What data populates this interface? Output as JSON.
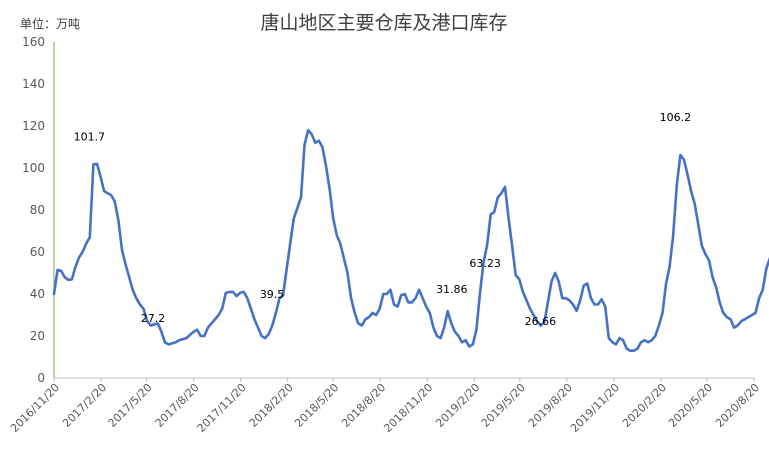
{
  "chart_data": {
    "type": "line",
    "title": "唐山地区主要仓库及港口库存",
    "unit_label": "单位：万吨",
    "ylabel": "",
    "xlabel": "",
    "ylim": [
      0,
      160
    ],
    "y_ticks": [
      "0",
      "20",
      "40",
      "60",
      "80",
      "100",
      "120",
      "140",
      "160"
    ],
    "x_tick_labels": [
      "2016/11/20",
      "2017/2/20",
      "2017/5/20",
      "2017/8/20",
      "2017/11/20",
      "2018/2/20",
      "2018/5/20",
      "2018/8/20",
      "2018/11/20",
      "2019/2/20",
      "2019/5/20",
      "2019/8/20",
      "2019/11/20",
      "2020/2/20",
      "2020/5/20",
      "2020/8/20"
    ],
    "grid": false,
    "legend": "none",
    "line_color": "#4472C4",
    "series": [
      {
        "x_start": "2016/11/20",
        "interval_days": 7,
        "values": [
          40,
          51.5,
          51,
          48,
          46.7,
          47,
          53,
          57.5,
          60,
          64,
          67,
          101.7,
          102,
          96,
          89,
          88,
          87,
          84,
          75,
          61,
          54,
          48,
          42,
          38,
          35,
          33,
          27.2,
          25,
          25.5,
          26,
          22,
          17,
          16,
          16.5,
          17,
          18,
          18.5,
          19,
          20.5,
          22,
          23,
          20,
          20,
          24,
          26,
          28,
          30,
          33,
          40.5,
          41,
          41,
          39,
          40.5,
          41,
          38,
          33,
          28,
          24,
          20,
          19,
          21,
          25,
          31,
          38,
          39.5,
          52,
          64,
          76,
          81,
          86,
          111,
          118,
          116,
          112,
          113,
          110,
          101,
          90,
          76,
          68,
          64,
          57,
          50,
          38,
          31,
          26,
          25,
          28,
          29,
          31,
          30,
          33,
          40,
          40,
          42,
          35,
          34,
          39.5,
          40,
          36,
          36,
          38,
          42,
          38,
          34,
          31,
          24,
          20,
          19,
          24,
          31.86,
          26,
          22,
          20,
          17,
          18,
          15,
          16,
          23,
          40,
          55,
          63.23,
          78,
          79,
          86,
          88,
          91,
          76,
          63,
          49,
          47,
          41,
          37,
          33,
          30,
          27,
          25,
          26.66,
          36,
          46,
          50,
          46,
          38,
          38,
          37,
          35,
          32,
          37,
          44,
          45,
          38,
          35,
          35,
          37.5,
          34,
          19,
          17,
          16,
          19,
          18,
          14,
          13,
          13,
          14,
          17,
          18,
          17,
          18,
          20,
          25,
          31,
          45,
          53,
          68,
          92,
          106.2,
          104,
          97,
          89,
          83,
          73,
          63,
          59,
          56,
          48,
          43,
          36,
          31,
          29,
          28,
          24,
          25,
          27,
          28,
          29,
          30,
          31,
          38,
          42,
          52,
          57,
          62
        ]
      }
    ],
    "annotations": [
      "101.7",
      "27.2",
      "39.5",
      "31.86",
      "63.23",
      "26.66",
      "106.2"
    ]
  }
}
